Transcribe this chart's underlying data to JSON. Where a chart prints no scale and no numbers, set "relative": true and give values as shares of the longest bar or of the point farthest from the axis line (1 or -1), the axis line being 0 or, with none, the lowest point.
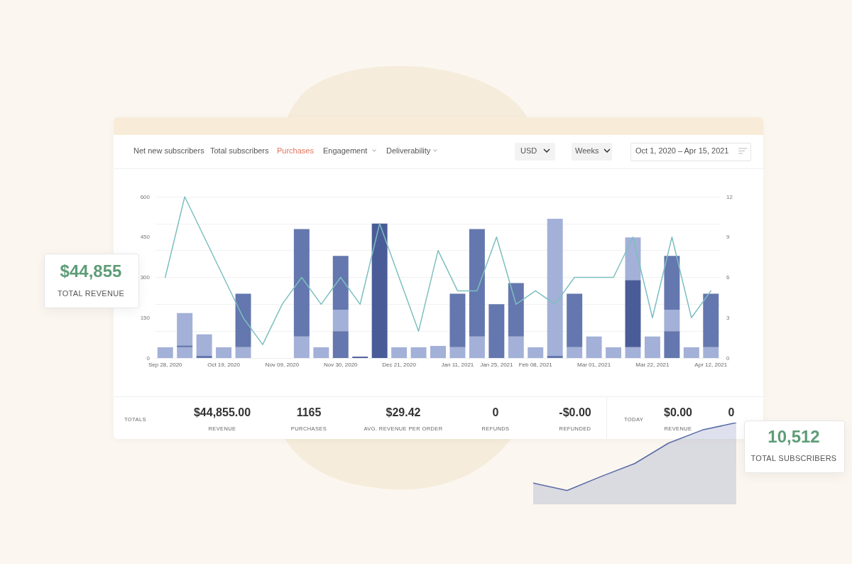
{
  "chart_data": [
    {
      "type": "bar",
      "stacked": true,
      "categories": [
        "Sep 28, 2020",
        null,
        null,
        "Oct 19, 2020",
        null,
        null,
        "Nov 09, 2020",
        null,
        null,
        "Nov 30, 2020",
        null,
        null,
        "Dec 21, 2020",
        null,
        null,
        "Jan 11, 2021",
        null,
        "Jan 25, 2021",
        null,
        "Feb 08, 2021",
        null,
        null,
        "Mar 01, 2021",
        null,
        null,
        "Mar 22, 2021",
        null,
        null,
        "Apr 12, 2021"
      ],
      "series": [
        {
          "values": [
            40,
            40,
            8,
            40,
            40,
            null,
            null,
            80,
            40,
            100,
            5,
            500,
            40,
            40,
            45,
            40,
            80,
            200,
            80,
            40,
            8,
            40,
            80,
            40,
            40,
            80,
            100,
            40,
            40
          ],
          "colors": [
            "#a3b0d8",
            "#a3b0d8",
            "#6477ae",
            "#a3b0d8",
            "#a3b0d8",
            null,
            null,
            "#a3b0d8",
            "#a3b0d8",
            "#6477ae",
            "#4a5c98",
            "#4a5c98",
            "#a3b0d8",
            "#a3b0d8",
            "#a3b0d8",
            "#a3b0d8",
            "#a3b0d8",
            "#6477ae",
            "#a3b0d8",
            "#a3b0d8",
            "#6477ae",
            "#a3b0d8",
            "#a3b0d8",
            "#a3b0d8",
            "#a3b0d8",
            "#a3b0d8",
            "#6477ae",
            "#a3b0d8",
            "#a3b0d8"
          ]
        },
        {
          "values": [
            null,
            7,
            80,
            null,
            199,
            null,
            null,
            400,
            null,
            80,
            null,
            null,
            null,
            null,
            null,
            199,
            400,
            null,
            199,
            null,
            510,
            199,
            null,
            null,
            250,
            null,
            80,
            null,
            199
          ],
          "colors": [
            null,
            "#6477ae",
            "#a3b0d8",
            null,
            "#6477ae",
            null,
            null,
            "#6477ae",
            null,
            "#a3b0d8",
            null,
            null,
            null,
            null,
            null,
            "#6477ae",
            "#6477ae",
            null,
            "#6477ae",
            null,
            "#a3b0d8",
            "#6477ae",
            null,
            null,
            "#4a5c98",
            null,
            "#a3b0d8",
            null,
            "#6477ae"
          ]
        },
        {
          "values": [
            null,
            120,
            null,
            null,
            null,
            null,
            null,
            null,
            null,
            200,
            null,
            null,
            null,
            null,
            null,
            null,
            null,
            null,
            null,
            null,
            null,
            null,
            null,
            null,
            159,
            null,
            200,
            null,
            null
          ],
          "colors": [
            null,
            "#a3b0d8",
            null,
            null,
            null,
            null,
            null,
            null,
            null,
            "#6477ae",
            null,
            null,
            null,
            null,
            null,
            null,
            null,
            null,
            null,
            null,
            null,
            null,
            null,
            null,
            "#a3b0d8",
            null,
            "#6477ae",
            null,
            null
          ]
        },
        {
          "type": "line",
          "axis": "y2",
          "color": "#7dbfbf",
          "values": [
            6,
            12,
            9,
            6,
            3,
            1,
            4,
            6,
            4,
            6,
            4,
            10,
            6,
            2,
            8,
            5,
            5,
            9,
            4,
            5,
            4,
            6,
            6,
            6,
            9,
            3,
            9,
            3,
            5
          ]
        }
      ],
      "ylim": [
        0,
        600
      ],
      "yticks": [
        0,
        150,
        300,
        450,
        600
      ],
      "y2lim": [
        0,
        12
      ],
      "y2ticks": [
        0,
        3,
        6,
        9,
        12
      ],
      "grid": "y",
      "marker": "none",
      "annotations": [
        "Net new subscribers",
        "Total subscribers",
        "Purchases",
        "Engagement",
        "Deliverability",
        "USD",
        "Weeks",
        "Oct 1, 2020  –  Apr 15, 2021",
        "$44,855",
        "TOTAL REVENUE",
        "TOTALS",
        "$44,855.00",
        "REVENUE",
        "1165",
        "PURCHASES",
        "$29.42",
        "AVG. REVENUE PER ORDER",
        "0",
        "REFUNDS",
        "-$0.00",
        "REFUNDED",
        "TODAY",
        "$0.00",
        "REVENUE",
        "0"
      ]
    },
    {
      "type": "area",
      "relative": true,
      "marker": "none",
      "categories": [
        null,
        null,
        null,
        null,
        null,
        null,
        null
      ],
      "values": [
        0.26,
        0.17,
        0.34,
        0.5,
        0.75,
        0.91,
        1
      ],
      "color": "#5a6aa5",
      "annotations": [
        "10,512",
        "TOTAL SUBSCRIBERS"
      ]
    }
  ]
}
